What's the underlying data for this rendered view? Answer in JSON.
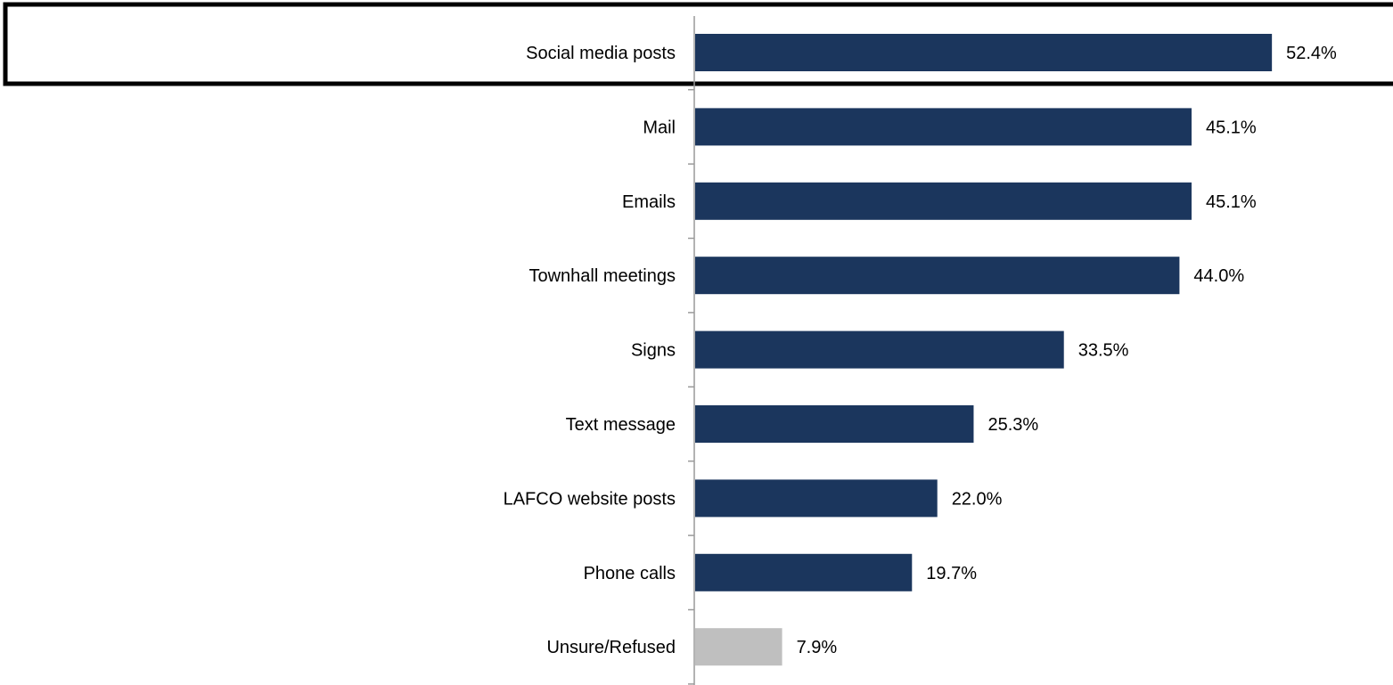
{
  "chart_data": {
    "type": "bar",
    "orientation": "horizontal",
    "categories": [
      "Social media posts",
      "Mail",
      "Emails",
      "Townhall meetings",
      "Signs",
      "Text message",
      "LAFCO website posts",
      "Phone calls",
      "Unsure/Refused"
    ],
    "values": [
      52.4,
      45.1,
      45.1,
      44.0,
      33.5,
      25.3,
      22.0,
      19.7,
      7.9
    ],
    "value_labels": [
      "52.4%",
      "45.1%",
      "45.1%",
      "44.0%",
      "33.5%",
      "25.3%",
      "22.0%",
      "19.7%",
      "7.9%"
    ],
    "bar_colors": [
      "#1b365d",
      "#1b365d",
      "#1b365d",
      "#1b365d",
      "#1b365d",
      "#1b365d",
      "#1b365d",
      "#1b365d",
      "#bfbfbf"
    ],
    "highlighted_category": "Social media posts",
    "title": "",
    "xlabel": "",
    "ylabel": "",
    "xlim": [
      0,
      60
    ],
    "grid": false,
    "legend": "none"
  },
  "colors": {
    "bar": "#1b365d",
    "bar_muted": "#bfbfbf",
    "axis": "#9a9a9a",
    "highlight_border": "#000000"
  }
}
